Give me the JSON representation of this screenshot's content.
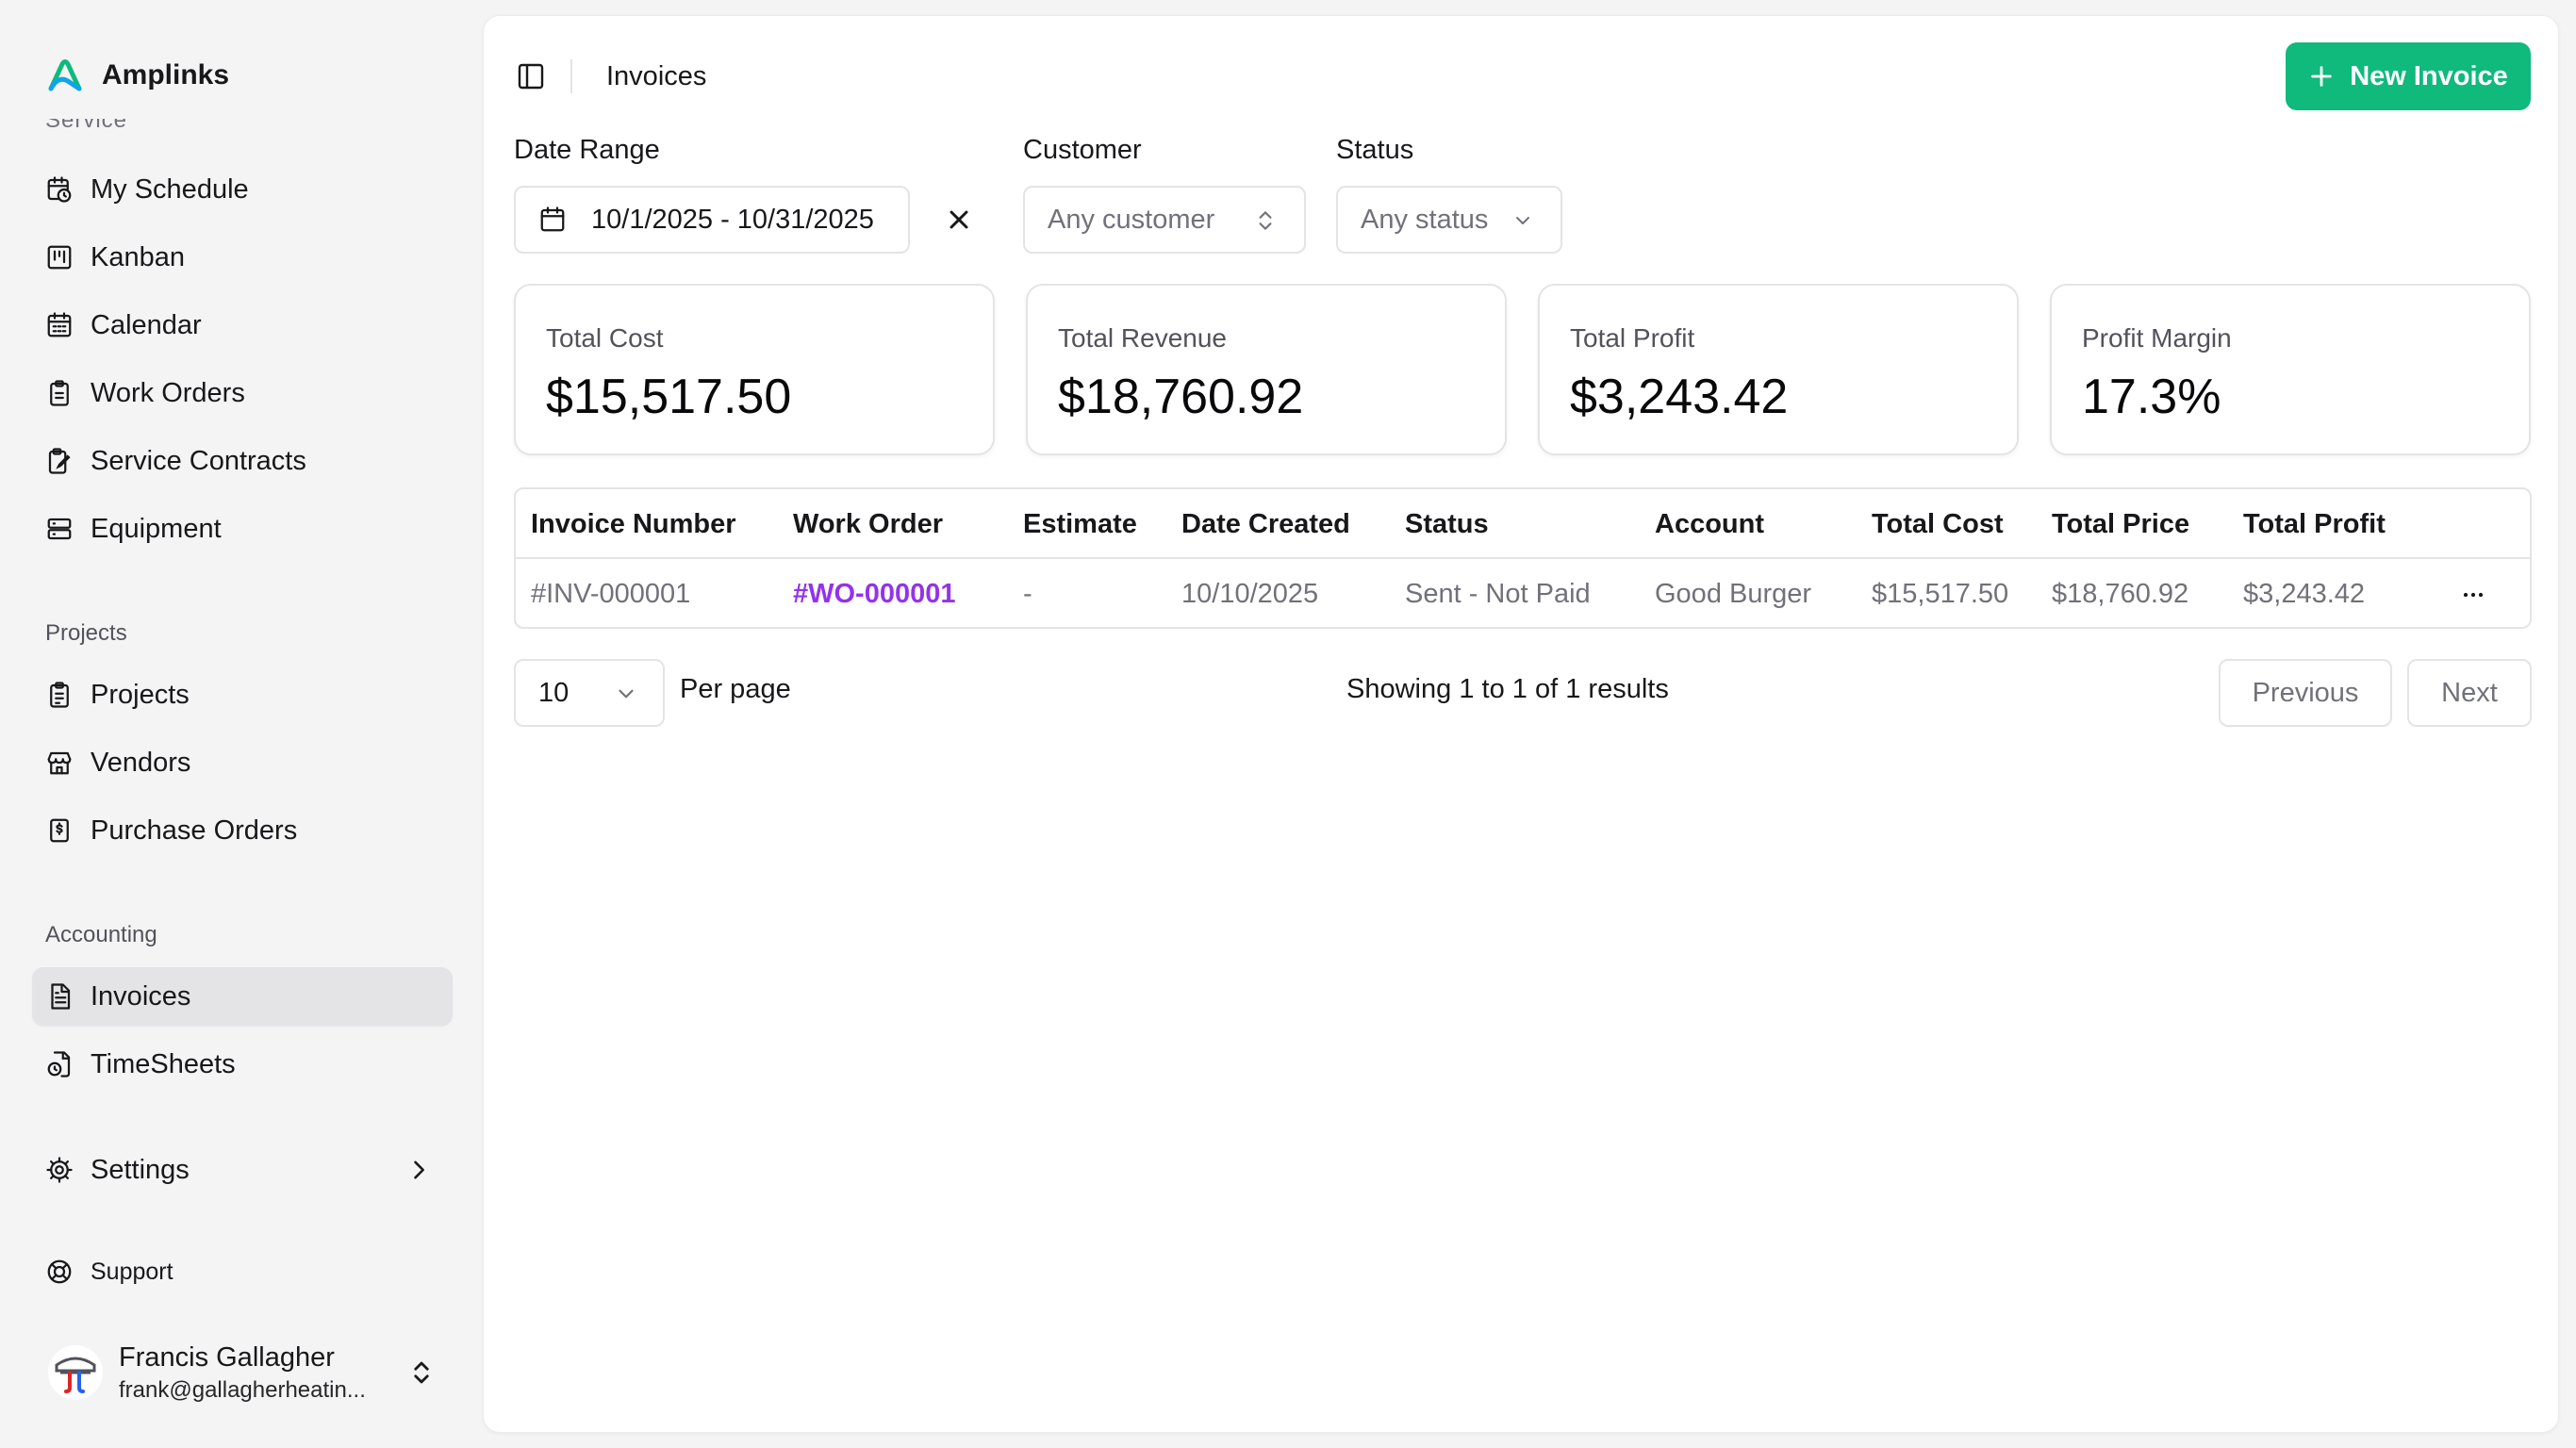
{
  "brand": {
    "name": "Amplinks",
    "accent": "#10b97c"
  },
  "sidebar": {
    "section_label_clipped": "Service",
    "service_items": [
      {
        "label": "My Schedule",
        "icon": "calendar-clock-icon"
      },
      {
        "label": "Kanban",
        "icon": "kanban-icon"
      },
      {
        "label": "Calendar",
        "icon": "calendar-icon"
      },
      {
        "label": "Work Orders",
        "icon": "clipboard-icon"
      },
      {
        "label": "Service Contracts",
        "icon": "file-signature-icon"
      },
      {
        "label": "Equipment",
        "icon": "server-icon"
      }
    ],
    "projects_label": "Projects",
    "projects_items": [
      {
        "label": "Projects",
        "icon": "clipboard-list-icon"
      },
      {
        "label": "Vendors",
        "icon": "store-icon"
      },
      {
        "label": "Purchase Orders",
        "icon": "receipt-dollar-icon"
      }
    ],
    "accounting_label": "Accounting",
    "accounting_items": [
      {
        "label": "Invoices",
        "icon": "file-text-icon",
        "active": true
      },
      {
        "label": "TimeSheets",
        "icon": "file-clock-icon"
      }
    ],
    "settings": {
      "label": "Settings",
      "icon": "gear-icon"
    },
    "support": {
      "label": "Support",
      "icon": "lifebuoy-icon"
    }
  },
  "user": {
    "name": "Francis Gallagher",
    "email": "frank@gallagherheatin..."
  },
  "header": {
    "title": "Invoices",
    "new_button": "New Invoice"
  },
  "filters": {
    "date_range_label": "Date Range",
    "date_range_value": "10/1/2025 - 10/31/2025",
    "customer_label": "Customer",
    "customer_placeholder": "Any customer",
    "status_label": "Status",
    "status_placeholder": "Any status"
  },
  "stats": [
    {
      "label": "Total Cost",
      "value": "$15,517.50"
    },
    {
      "label": "Total Revenue",
      "value": "$18,760.92"
    },
    {
      "label": "Total Profit",
      "value": "$3,243.42"
    },
    {
      "label": "Profit Margin",
      "value": "17.3%"
    }
  ],
  "table": {
    "columns": [
      "Invoice Number",
      "Work Order",
      "Estimate",
      "Date Created",
      "Status",
      "Account",
      "Total Cost",
      "Total Price",
      "Total Profit"
    ],
    "rows": [
      [
        "#INV-000001",
        "#WO-000001",
        "-",
        "10/10/2025",
        "Sent - Not Paid",
        "Good Burger",
        "$15,517.50",
        "$18,760.92",
        "$3,243.42"
      ]
    ]
  },
  "pagination": {
    "per_page_value": "10",
    "per_page_label": "Per page",
    "showing_prefix": "Showing ",
    "showing_from": "1",
    "showing_mid1": " to ",
    "showing_to": "1",
    "showing_mid2": " of ",
    "showing_total": "1",
    "showing_suffix": " results",
    "previous": "Previous",
    "next": "Next"
  }
}
